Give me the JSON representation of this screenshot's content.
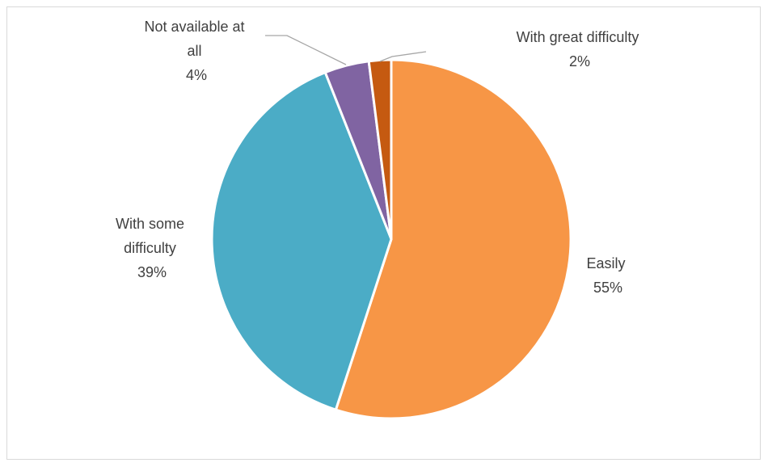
{
  "chart_data": {
    "type": "pie",
    "title": "",
    "slices": [
      {
        "name": "Easily",
        "value": 55,
        "label": "55%",
        "label_lines": [
          "Easily",
          "55%"
        ],
        "color": "#F79646"
      },
      {
        "name": "With some difficulty",
        "value": 39,
        "label": "39%",
        "label_lines": [
          "With some",
          "difficulty",
          "39%"
        ],
        "color": "#4BACC6"
      },
      {
        "name": "Not available at all",
        "value": 4,
        "label": "4%",
        "label_lines": [
          "Not available at",
          "all",
          "4%"
        ],
        "color": "#8064A2"
      },
      {
        "name": "With great difficulty",
        "value": 2,
        "label": "2%",
        "label_lines": [
          "With great difficulty",
          "2%"
        ],
        "color": "#C55A11"
      }
    ],
    "start_angle": "12 o'clock",
    "direction": "clockwise",
    "legend": "none",
    "label_position": "outside"
  }
}
